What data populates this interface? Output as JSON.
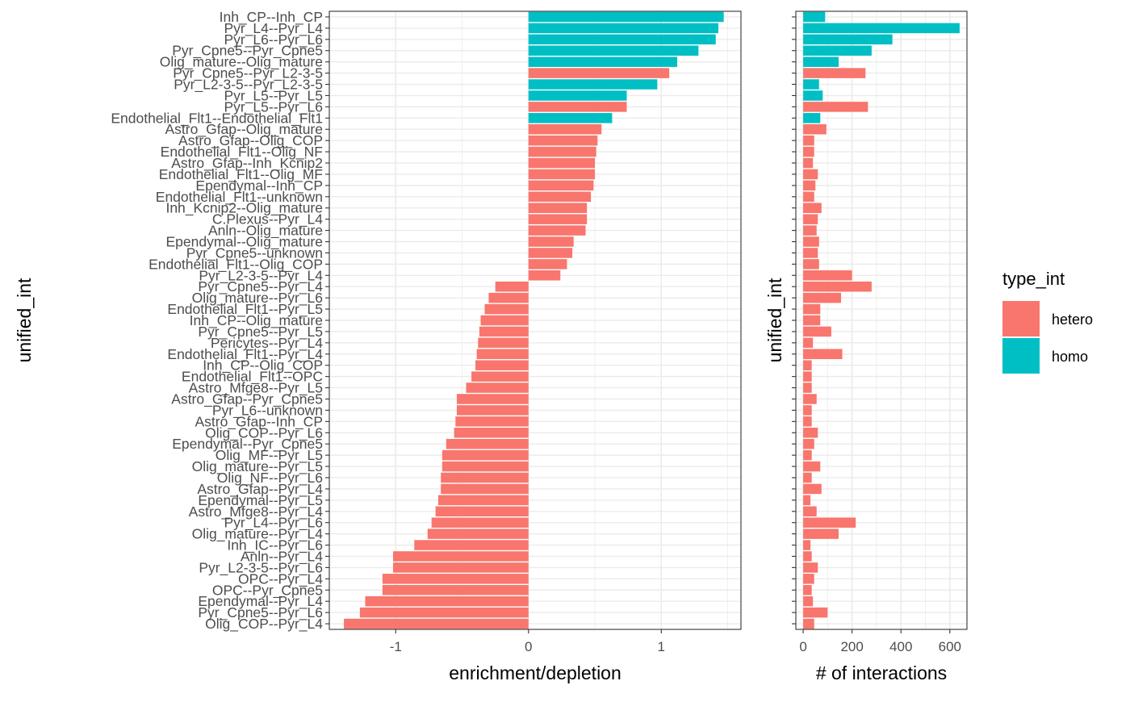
{
  "colors": {
    "hetero": "#F8766D",
    "homo": "#00BFC4",
    "grid": "#EBEBEB"
  },
  "chart_data": [
    {
      "type": "bar",
      "orientation": "horizontal",
      "xlabel": "enrichment/depletion",
      "ylabel": "unified_int",
      "xlim": [
        -1.5,
        1.6
      ],
      "xticks": [
        -1,
        0,
        1
      ],
      "xtick_labels": [
        "-1",
        "0",
        "1"
      ],
      "grid": true,
      "categories": [
        "Inh_CP--Inh_CP",
        "Pyr_L4--Pyr_L4",
        "Pyr_L6--Pyr_L6",
        "Pyr_Cpne5--Pyr_Cpne5",
        "Olig_mature--Olig_mature",
        "Pyr_Cpne5--Pyr_L2-3-5",
        "Pyr_L2-3-5--Pyr_L2-3-5",
        "Pyr_L5--Pyr_L5",
        "Pyr_L5--Pyr_L6",
        "Endothelial_Flt1--Endothelial_Flt1",
        "Astro_Gfap--Olig_mature",
        "Astro_Gfap--Olig_COP",
        "Endothelial_Flt1--Olig_NF",
        "Astro_Gfap--Inh_Kcnip2",
        "Endothelial_Flt1--Olig_MF",
        "Ependymal--Inh_CP",
        "Endothelial_Flt1--unknown",
        "Inh_Kcnip2--Olig_mature",
        "C.Plexus--Pyr_L4",
        "Anln--Olig_mature",
        "Ependymal--Olig_mature",
        "Pyr_Cpne5--unknown",
        "Endothelial_Flt1--Olig_COP",
        "Pyr_L2-3-5--Pyr_L4",
        "Pyr_Cpne5--Pyr_L4",
        "Olig_mature--Pyr_L6",
        "Endothelial_Flt1--Pyr_L5",
        "Inh_CP--Olig_mature",
        "Pyr_Cpne5--Pyr_L5",
        "Pericytes--Pyr_L4",
        "Endothelial_Flt1--Pyr_L4",
        "Inh_CP--Olig_COP",
        "Endothelial_Flt1--OPC",
        "Astro_Mfge8--Pyr_L5",
        "Astro_Gfap--Pyr_Cpne5",
        "Pyr_L6--unknown",
        "Astro_Gfap--Inh_CP",
        "Olig_COP--Pyr_L6",
        "Ependymal--Pyr_Cpne5",
        "Olig_MF--Pyr_L5",
        "Olig_mature--Pyr_L5",
        "Olig_NF--Pyr_L6",
        "Astro_Gfap--Pyr_L4",
        "Ependymal--Pyr_L5",
        "Astro_Mfge8--Pyr_L4",
        "Pyr_L4--Pyr_L6",
        "Olig_mature--Pyr_L4",
        "Inh_IC--Pyr_L6",
        "Anln--Pyr_L4",
        "Pyr_L2-3-5--Pyr_L6",
        "OPC--Pyr_L4",
        "OPC--Pyr_Cpne5",
        "Ependymal--Pyr_L4",
        "Pyr_Cpne5--Pyr_L6",
        "Olig_COP--Pyr_L4"
      ],
      "types": [
        "homo",
        "homo",
        "homo",
        "homo",
        "homo",
        "hetero",
        "homo",
        "homo",
        "hetero",
        "homo",
        "hetero",
        "hetero",
        "hetero",
        "hetero",
        "hetero",
        "hetero",
        "hetero",
        "hetero",
        "hetero",
        "hetero",
        "hetero",
        "hetero",
        "hetero",
        "hetero",
        "hetero",
        "hetero",
        "hetero",
        "hetero",
        "hetero",
        "hetero",
        "hetero",
        "hetero",
        "hetero",
        "hetero",
        "hetero",
        "hetero",
        "hetero",
        "hetero",
        "hetero",
        "hetero",
        "hetero",
        "hetero",
        "hetero",
        "hetero",
        "hetero",
        "hetero",
        "hetero",
        "hetero",
        "hetero",
        "hetero",
        "hetero",
        "hetero",
        "hetero",
        "hetero",
        "hetero"
      ],
      "values": [
        1.47,
        1.43,
        1.41,
        1.28,
        1.12,
        1.06,
        0.97,
        0.74,
        0.74,
        0.63,
        0.55,
        0.52,
        0.51,
        0.5,
        0.5,
        0.49,
        0.47,
        0.44,
        0.44,
        0.43,
        0.34,
        0.33,
        0.29,
        0.24,
        -0.25,
        -0.3,
        -0.33,
        -0.36,
        -0.37,
        -0.38,
        -0.39,
        -0.4,
        -0.43,
        -0.47,
        -0.54,
        -0.54,
        -0.55,
        -0.56,
        -0.62,
        -0.65,
        -0.65,
        -0.66,
        -0.66,
        -0.68,
        -0.7,
        -0.73,
        -0.76,
        -0.86,
        -1.02,
        -1.02,
        -1.1,
        -1.1,
        -1.23,
        -1.27,
        -1.39
      ]
    },
    {
      "type": "bar",
      "orientation": "horizontal",
      "xlabel": "# of interactions",
      "ylabel": "unified_int",
      "xlim": [
        -30,
        670
      ],
      "xticks": [
        0,
        200,
        400,
        600
      ],
      "xtick_labels": [
        "0",
        "200",
        "400",
        "600"
      ],
      "grid": true,
      "values": [
        90,
        640,
        365,
        280,
        145,
        255,
        65,
        80,
        265,
        70,
        95,
        45,
        45,
        40,
        60,
        50,
        45,
        75,
        60,
        55,
        65,
        60,
        65,
        200,
        280,
        155,
        70,
        70,
        115,
        40,
        160,
        35,
        35,
        35,
        55,
        35,
        35,
        60,
        45,
        35,
        70,
        35,
        75,
        30,
        55,
        215,
        145,
        30,
        35,
        60,
        45,
        35,
        40,
        100,
        45
      ]
    }
  ],
  "legend": {
    "title": "type_int",
    "position": "right",
    "items": [
      {
        "label": "hetero",
        "color": "#F8766D"
      },
      {
        "label": "homo",
        "color": "#00BFC4"
      }
    ]
  }
}
